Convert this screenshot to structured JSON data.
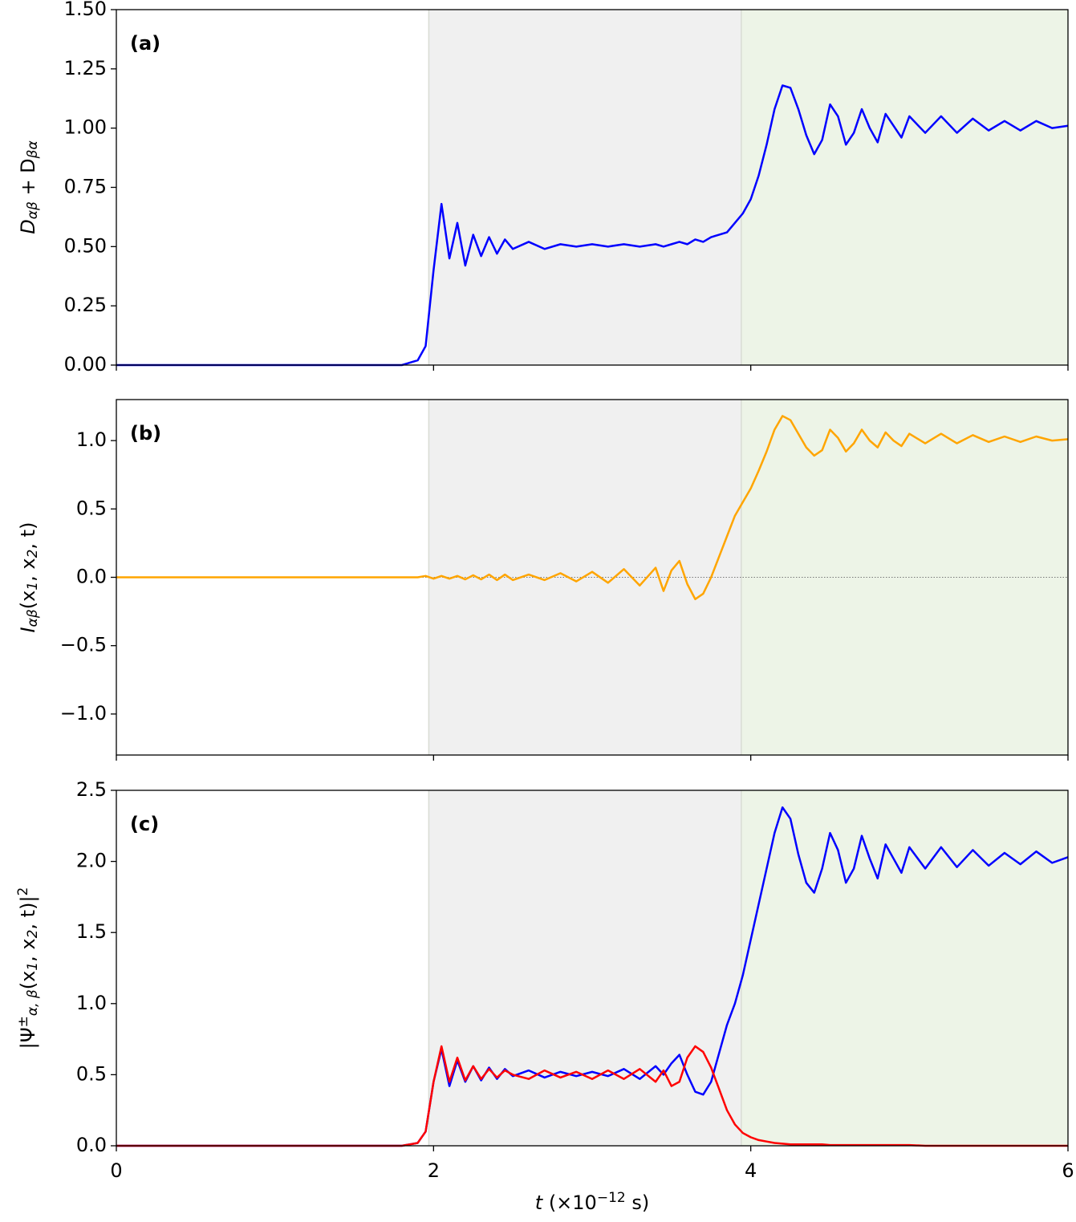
{
  "chart_data": [
    {
      "type": "line",
      "panel_label": "(a)",
      "ylabel": [
        {
          "text": "D"
        },
        {
          "sub": "αβ"
        },
        {
          "text": " + D"
        },
        {
          "sub": "βα"
        }
      ],
      "x": [
        0,
        0.5,
        1,
        1.5,
        1.8,
        1.9,
        1.95,
        2,
        2.05,
        2.1,
        2.15,
        2.2,
        2.25,
        2.3,
        2.35,
        2.4,
        2.45,
        2.5,
        2.6,
        2.7,
        2.8,
        2.9,
        3,
        3.1,
        3.2,
        3.3,
        3.4,
        3.45,
        3.5,
        3.55,
        3.6,
        3.65,
        3.7,
        3.75,
        3.8,
        3.85,
        3.9,
        3.95,
        4,
        4.05,
        4.1,
        4.15,
        4.2,
        4.25,
        4.3,
        4.35,
        4.4,
        4.45,
        4.5,
        4.55,
        4.6,
        4.65,
        4.7,
        4.75,
        4.8,
        4.85,
        4.9,
        4.95,
        5,
        5.1,
        5.2,
        5.3,
        5.4,
        5.5,
        5.6,
        5.7,
        5.8,
        5.9,
        6
      ],
      "series": [
        {
          "color": "#0000ff",
          "values": [
            0,
            0,
            0,
            0,
            0,
            0.02,
            0.08,
            0.4,
            0.68,
            0.45,
            0.6,
            0.42,
            0.55,
            0.46,
            0.54,
            0.47,
            0.53,
            0.49,
            0.52,
            0.49,
            0.51,
            0.5,
            0.51,
            0.5,
            0.51,
            0.5,
            0.51,
            0.5,
            0.51,
            0.52,
            0.51,
            0.53,
            0.52,
            0.54,
            0.55,
            0.56,
            0.6,
            0.64,
            0.7,
            0.8,
            0.93,
            1.08,
            1.18,
            1.17,
            1.08,
            0.97,
            0.89,
            0.95,
            1.1,
            1.05,
            0.93,
            0.98,
            1.08,
            1.0,
            0.94,
            1.06,
            1.01,
            0.96,
            1.05,
            0.98,
            1.05,
            0.98,
            1.04,
            0.99,
            1.03,
            0.99,
            1.03,
            1.0,
            1.01
          ]
        }
      ],
      "spans": [
        {
          "xlim": [
            1.97,
            3.94
          ],
          "color": "#f0f0f0"
        },
        {
          "xlim": [
            3.94,
            6
          ],
          "color": "#edf4e7"
        }
      ],
      "xlim": [
        0,
        6
      ],
      "xticks": [
        0,
        2,
        4,
        6
      ],
      "show_xticklabels": false,
      "ylim": [
        0,
        1.5
      ],
      "yticks": [
        {
          "value": 0,
          "label": "0.00"
        },
        0.25,
        {
          "value": 0.5,
          "label": "0.50"
        },
        0.75,
        {
          "value": 1,
          "label": "1.00"
        },
        1.25,
        {
          "value": 1.5,
          "label": "1.50"
        }
      ]
    },
    {
      "type": "line",
      "panel_label": "(b)",
      "ylabel": [
        {
          "text": "I"
        },
        {
          "sub": "αβ"
        },
        {
          "text": "(x"
        },
        {
          "sub": "1"
        },
        {
          "text": ", x"
        },
        {
          "sub": "2"
        },
        {
          "text": ", t)"
        }
      ],
      "x": [
        0,
        0.5,
        1,
        1.5,
        1.8,
        1.9,
        1.95,
        2,
        2.05,
        2.1,
        2.15,
        2.2,
        2.25,
        2.3,
        2.35,
        2.4,
        2.45,
        2.5,
        2.6,
        2.7,
        2.8,
        2.9,
        3,
        3.1,
        3.2,
        3.3,
        3.4,
        3.45,
        3.5,
        3.55,
        3.6,
        3.65,
        3.7,
        3.75,
        3.8,
        3.85,
        3.9,
        3.95,
        4,
        4.05,
        4.1,
        4.15,
        4.2,
        4.25,
        4.3,
        4.35,
        4.4,
        4.45,
        4.5,
        4.55,
        4.6,
        4.65,
        4.7,
        4.75,
        4.8,
        4.85,
        4.9,
        4.95,
        5,
        5.1,
        5.2,
        5.3,
        5.4,
        5.5,
        5.6,
        5.7,
        5.8,
        5.9,
        6
      ],
      "series": [
        {
          "color": "#ffa500",
          "values": [
            0,
            0,
            0,
            0,
            0,
            0,
            0.01,
            -0.01,
            0.01,
            -0.01,
            0.01,
            -0.015,
            0.015,
            -0.015,
            0.02,
            -0.02,
            0.02,
            -0.02,
            0.02,
            -0.02,
            0.03,
            -0.03,
            0.04,
            -0.04,
            0.06,
            -0.06,
            0.07,
            -0.1,
            0.05,
            0.12,
            -0.05,
            -0.16,
            -0.12,
            0.0,
            0.15,
            0.3,
            0.45,
            0.55,
            0.65,
            0.78,
            0.92,
            1.08,
            1.18,
            1.15,
            1.05,
            0.95,
            0.89,
            0.93,
            1.08,
            1.02,
            0.92,
            0.98,
            1.08,
            1.0,
            0.95,
            1.06,
            1.0,
            0.96,
            1.05,
            0.98,
            1.05,
            0.98,
            1.04,
            0.99,
            1.03,
            0.99,
            1.03,
            1.0,
            1.01
          ]
        }
      ],
      "hline": 0,
      "spans": [
        {
          "xlim": [
            1.97,
            3.94
          ],
          "color": "#f0f0f0"
        },
        {
          "xlim": [
            3.94,
            6
          ],
          "color": "#edf4e7"
        }
      ],
      "xlim": [
        0,
        6
      ],
      "xticks": [
        0,
        2,
        4,
        6
      ],
      "show_xticklabels": false,
      "ylim": [
        -1.3,
        1.3
      ],
      "yticks": [
        {
          "value": -1,
          "label": "−1.0"
        },
        {
          "value": -0.5,
          "label": "−0.5"
        },
        {
          "value": 0,
          "label": "0.0"
        },
        0.5,
        {
          "value": 1,
          "label": "1.0"
        }
      ]
    },
    {
      "type": "line",
      "panel_label": "(c)",
      "ylabel": [
        {
          "text": "|Ψ"
        },
        {
          "sup": "±"
        },
        {
          "sub": "α, β"
        },
        {
          "text": "(x"
        },
        {
          "sub": "1"
        },
        {
          "text": ", x"
        },
        {
          "sub": "2"
        },
        {
          "text": ", t)|"
        },
        {
          "sup": "2"
        }
      ],
      "xlabel": [
        {
          "text": "t"
        },
        {
          "text": " (×10"
        },
        {
          "sup": "−12"
        },
        {
          "text": " s)"
        }
      ],
      "x": [
        0,
        0.5,
        1,
        1.5,
        1.8,
        1.9,
        1.95,
        2,
        2.05,
        2.1,
        2.15,
        2.2,
        2.25,
        2.3,
        2.35,
        2.4,
        2.45,
        2.5,
        2.6,
        2.7,
        2.8,
        2.9,
        3,
        3.1,
        3.2,
        3.3,
        3.4,
        3.45,
        3.5,
        3.55,
        3.6,
        3.65,
        3.7,
        3.75,
        3.8,
        3.85,
        3.9,
        3.95,
        4,
        4.05,
        4.1,
        4.15,
        4.2,
        4.25,
        4.3,
        4.35,
        4.4,
        4.45,
        4.5,
        4.55,
        4.6,
        4.65,
        4.7,
        4.75,
        4.8,
        4.85,
        4.9,
        4.95,
        5,
        5.1,
        5.2,
        5.3,
        5.4,
        5.5,
        5.6,
        5.7,
        5.8,
        5.9,
        6
      ],
      "series": [
        {
          "color": "#0000ff",
          "values": [
            0,
            0,
            0,
            0,
            0,
            0.02,
            0.1,
            0.45,
            0.68,
            0.42,
            0.6,
            0.45,
            0.56,
            0.46,
            0.55,
            0.47,
            0.54,
            0.49,
            0.53,
            0.48,
            0.52,
            0.49,
            0.52,
            0.49,
            0.54,
            0.47,
            0.56,
            0.5,
            0.58,
            0.64,
            0.5,
            0.38,
            0.36,
            0.45,
            0.65,
            0.85,
            1.0,
            1.2,
            1.45,
            1.7,
            1.95,
            2.2,
            2.38,
            2.3,
            2.05,
            1.85,
            1.78,
            1.95,
            2.2,
            2.08,
            1.85,
            1.95,
            2.18,
            2.02,
            1.88,
            2.12,
            2.02,
            1.92,
            2.1,
            1.95,
            2.1,
            1.96,
            2.08,
            1.97,
            2.06,
            1.98,
            2.07,
            1.99,
            2.03
          ]
        },
        {
          "color": "#ff0000",
          "values": [
            0,
            0,
            0,
            0,
            0,
            0.02,
            0.1,
            0.45,
            0.7,
            0.45,
            0.62,
            0.46,
            0.56,
            0.47,
            0.54,
            0.48,
            0.53,
            0.5,
            0.47,
            0.53,
            0.48,
            0.52,
            0.47,
            0.53,
            0.47,
            0.54,
            0.45,
            0.53,
            0.42,
            0.45,
            0.62,
            0.7,
            0.66,
            0.55,
            0.4,
            0.25,
            0.15,
            0.09,
            0.06,
            0.04,
            0.03,
            0.02,
            0.015,
            0.01,
            0.01,
            0.01,
            0.01,
            0.01,
            0.005,
            0.005,
            0.005,
            0.005,
            0.005,
            0.005,
            0.005,
            0.005,
            0.005,
            0.005,
            0.005,
            0,
            0,
            0,
            0,
            0,
            0,
            0,
            0,
            0,
            0
          ]
        }
      ],
      "spans": [
        {
          "xlim": [
            1.97,
            3.94
          ],
          "color": "#f0f0f0"
        },
        {
          "xlim": [
            3.94,
            6
          ],
          "color": "#edf4e7"
        }
      ],
      "xlim": [
        0,
        6
      ],
      "xticks": [
        0,
        2,
        4,
        6
      ],
      "show_xticklabels": true,
      "ylim": [
        0,
        2.5
      ],
      "yticks": [
        {
          "value": 0,
          "label": "0.0"
        },
        0.5,
        {
          "value": 1,
          "label": "1.0"
        },
        1.5,
        {
          "value": 2,
          "label": "2.0"
        },
        2.5
      ]
    }
  ]
}
